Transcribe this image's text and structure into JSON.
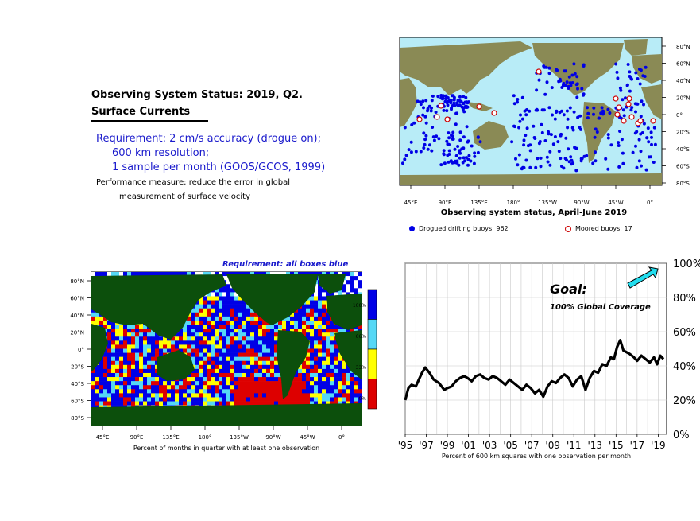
{
  "header": {
    "title_line1": "Observing System Status:  2019, Q2.",
    "title_line2": "Surface Currents"
  },
  "requirement": {
    "line1": "Requirement: 2 cm/s accuracy (drogue on);",
    "line2": "600 km resolution;",
    "line3": "1 sample per month (GOOS/GCOS, 1999)"
  },
  "performance": {
    "line1": "Performance measure: reduce the error in global",
    "line2": "measurement of surface velocity"
  },
  "map_status": {
    "caption": "Observing system status, April-June 2019",
    "lat_labels": [
      "80°N",
      "60°N",
      "40°N",
      "20°N",
      "0°",
      "20°S",
      "40°S",
      "60°S",
      "80°S"
    ],
    "lon_labels": [
      "45°E",
      "90°E",
      "135°E",
      "180°",
      "135°W",
      "90°W",
      "45°W",
      "0°"
    ],
    "legend_drogued": "Drogued drifting buoys: 962",
    "legend_moored": "Moored buoys: 17",
    "ocean_color": "#b8ecf7",
    "land_color": "#8a8a55",
    "drifter_color": "#0000e6",
    "moored_color": "#cc0000"
  },
  "map_coverage": {
    "title": "Requirement: all boxes blue",
    "caption": "Percent of months in quarter with at least one observation",
    "lat_labels": [
      "80°N",
      "60°N",
      "40°N",
      "20°N",
      "0°",
      "20°S",
      "40°S",
      "60°S",
      "80°S"
    ],
    "lon_labels": [
      "45°E",
      "90°E",
      "135°E",
      "180°",
      "135°W",
      "90°W",
      "45°W",
      "0°"
    ],
    "colorbar_labels": [
      "100%",
      "66%",
      "33%",
      "0%"
    ],
    "colorbar_colors": [
      "#0000e6",
      "#55d8f6",
      "#ffff00",
      "#dd0000"
    ],
    "land_color": "#0c4f0c"
  },
  "timeseries": {
    "caption": "Percent of 600 km squares with one observation per month",
    "goal_title": "Goal:",
    "goal_text": "100% Global Coverage",
    "arrow_color": "#22ddee"
  },
  "chart_data": {
    "type": "line",
    "title": "",
    "xlabel": "Percent of 600 km squares with one observation per month",
    "ylabel": "",
    "x_tick_labels": [
      "'95",
      "'97",
      "'99",
      "'01",
      "'03",
      "'05",
      "'07",
      "'09",
      "'11",
      "'13",
      "'15",
      "'17",
      "'19"
    ],
    "x_tick_years": [
      1995,
      1997,
      1999,
      2001,
      2003,
      2005,
      2007,
      2009,
      2011,
      2013,
      2015,
      2017,
      2019
    ],
    "y_tick_labels": [
      "0%",
      "20%",
      "40%",
      "60%",
      "80%",
      "100%"
    ],
    "xlim": [
      1995,
      2019.8
    ],
    "ylim": [
      0,
      100
    ],
    "grid": true,
    "series": [
      {
        "x": [
          1995.0,
          1995.3,
          1995.6,
          1996.0,
          1996.3,
          1996.6,
          1996.9,
          1997.3,
          1997.7,
          1998.2,
          1998.7,
          1999.0,
          1999.4,
          1999.8,
          2000.2,
          2000.6,
          2000.9,
          2001.3,
          2001.7,
          2002.1,
          2002.5,
          2002.9,
          2003.3,
          2003.7,
          2004.1,
          2004.5,
          2004.9,
          2005.3,
          2005.7,
          2006.1,
          2006.5,
          2006.9,
          2007.3,
          2007.7,
          2008.1,
          2008.5,
          2008.9,
          2009.3,
          2009.7,
          2010.1,
          2010.5,
          2010.9,
          2011.3,
          2011.7,
          2012.1,
          2012.5,
          2012.9,
          2013.3,
          2013.7,
          2014.1,
          2014.5,
          2014.8,
          2015.1,
          2015.4,
          2015.7,
          2016.0,
          2016.3,
          2016.7,
          2017.0,
          2017.4,
          2017.8,
          2018.2,
          2018.6,
          2018.9,
          2019.2,
          2019.5
        ],
        "y": [
          20,
          27,
          29,
          28,
          32,
          36,
          39,
          36,
          32,
          30,
          26,
          27,
          28,
          31,
          33,
          34,
          33,
          31,
          34,
          35,
          33,
          32,
          34,
          33,
          31,
          29,
          32,
          30,
          28,
          26,
          29,
          27,
          24,
          26,
          22,
          28,
          31,
          30,
          33,
          35,
          33,
          28,
          32,
          34,
          26,
          33,
          37,
          36,
          41,
          40,
          45,
          44,
          51,
          55,
          49,
          48,
          47,
          45,
          43,
          46,
          44,
          42,
          45,
          41,
          46,
          44
        ]
      }
    ]
  }
}
